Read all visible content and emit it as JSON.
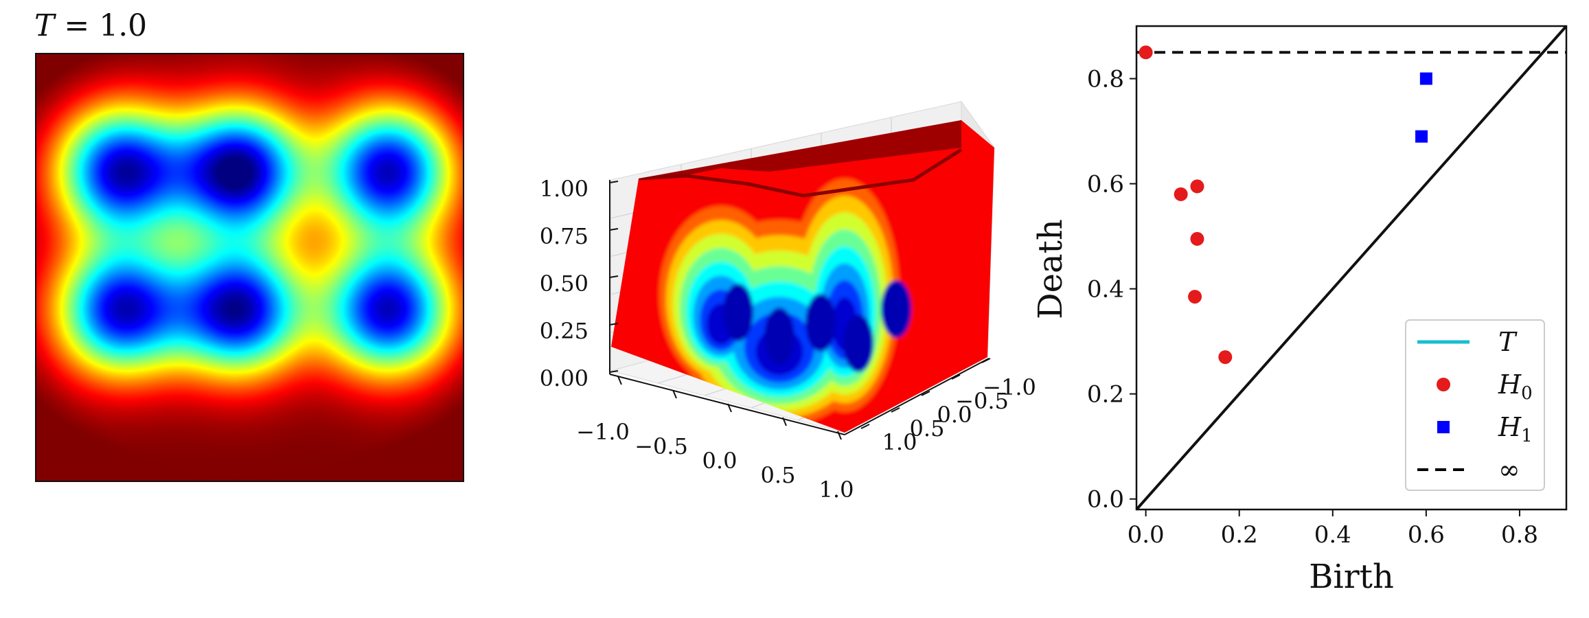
{
  "chart_data": [
    {
      "type": "heatmap",
      "title": "T = 1.0",
      "title_parts": {
        "var": "T",
        "eq": " = ",
        "value": "1.0"
      },
      "colormap": "jet",
      "grid": false,
      "wells": [
        {
          "x": -0.6,
          "y": 0.45,
          "depth": 0.93
        },
        {
          "x": -0.05,
          "y": 0.45,
          "depth": 1.0
        },
        {
          "x": 0.65,
          "y": 0.45,
          "depth": 0.93
        },
        {
          "x": -0.6,
          "y": -0.2,
          "depth": 0.91
        },
        {
          "x": -0.05,
          "y": -0.2,
          "depth": 0.95
        },
        {
          "x": 0.65,
          "y": -0.2,
          "depth": 0.93
        }
      ]
    },
    {
      "type": "surface",
      "colormap": "jet",
      "zlim": [
        0,
        1.0
      ],
      "xticks": [
        "−1.0",
        "−0.5",
        "0.0",
        "0.5",
        "1.0"
      ],
      "yticks": [
        "−1.0",
        "−0.5",
        "0.0",
        "0.5",
        "1.0"
      ],
      "zticks": [
        "0.00",
        "0.25",
        "0.50",
        "0.75",
        "1.00"
      ]
    },
    {
      "type": "scatter",
      "xlabel": "Birth",
      "ylabel": "Death",
      "xlim": [
        -0.02,
        0.9
      ],
      "ylim": [
        -0.02,
        0.9
      ],
      "xticks": [
        "0.0",
        "0.2",
        "0.4",
        "0.6",
        "0.8"
      ],
      "yticks": [
        "0.0",
        "0.2",
        "0.4",
        "0.6",
        "0.8"
      ],
      "legend_position": "lower-right",
      "infinity_level": 0.85,
      "series": [
        {
          "name": "T",
          "kind": "line",
          "color": "#17becf",
          "points": []
        },
        {
          "name": "H",
          "subscript": "0",
          "kind": "circle",
          "color": "#e41a1c",
          "points": [
            {
              "x": 0.0,
              "y": 0.85
            },
            {
              "x": 0.075,
              "y": 0.58
            },
            {
              "x": 0.11,
              "y": 0.595
            },
            {
              "x": 0.11,
              "y": 0.495
            },
            {
              "x": 0.105,
              "y": 0.385
            },
            {
              "x": 0.17,
              "y": 0.27
            }
          ]
        },
        {
          "name": "H",
          "subscript": "1",
          "kind": "square",
          "color": "#0000ff",
          "points": [
            {
              "x": 0.6,
              "y": 0.8
            },
            {
              "x": 0.59,
              "y": 0.69
            }
          ]
        },
        {
          "name": "∞",
          "kind": "dashed",
          "color": "#000000",
          "points": []
        }
      ]
    }
  ]
}
